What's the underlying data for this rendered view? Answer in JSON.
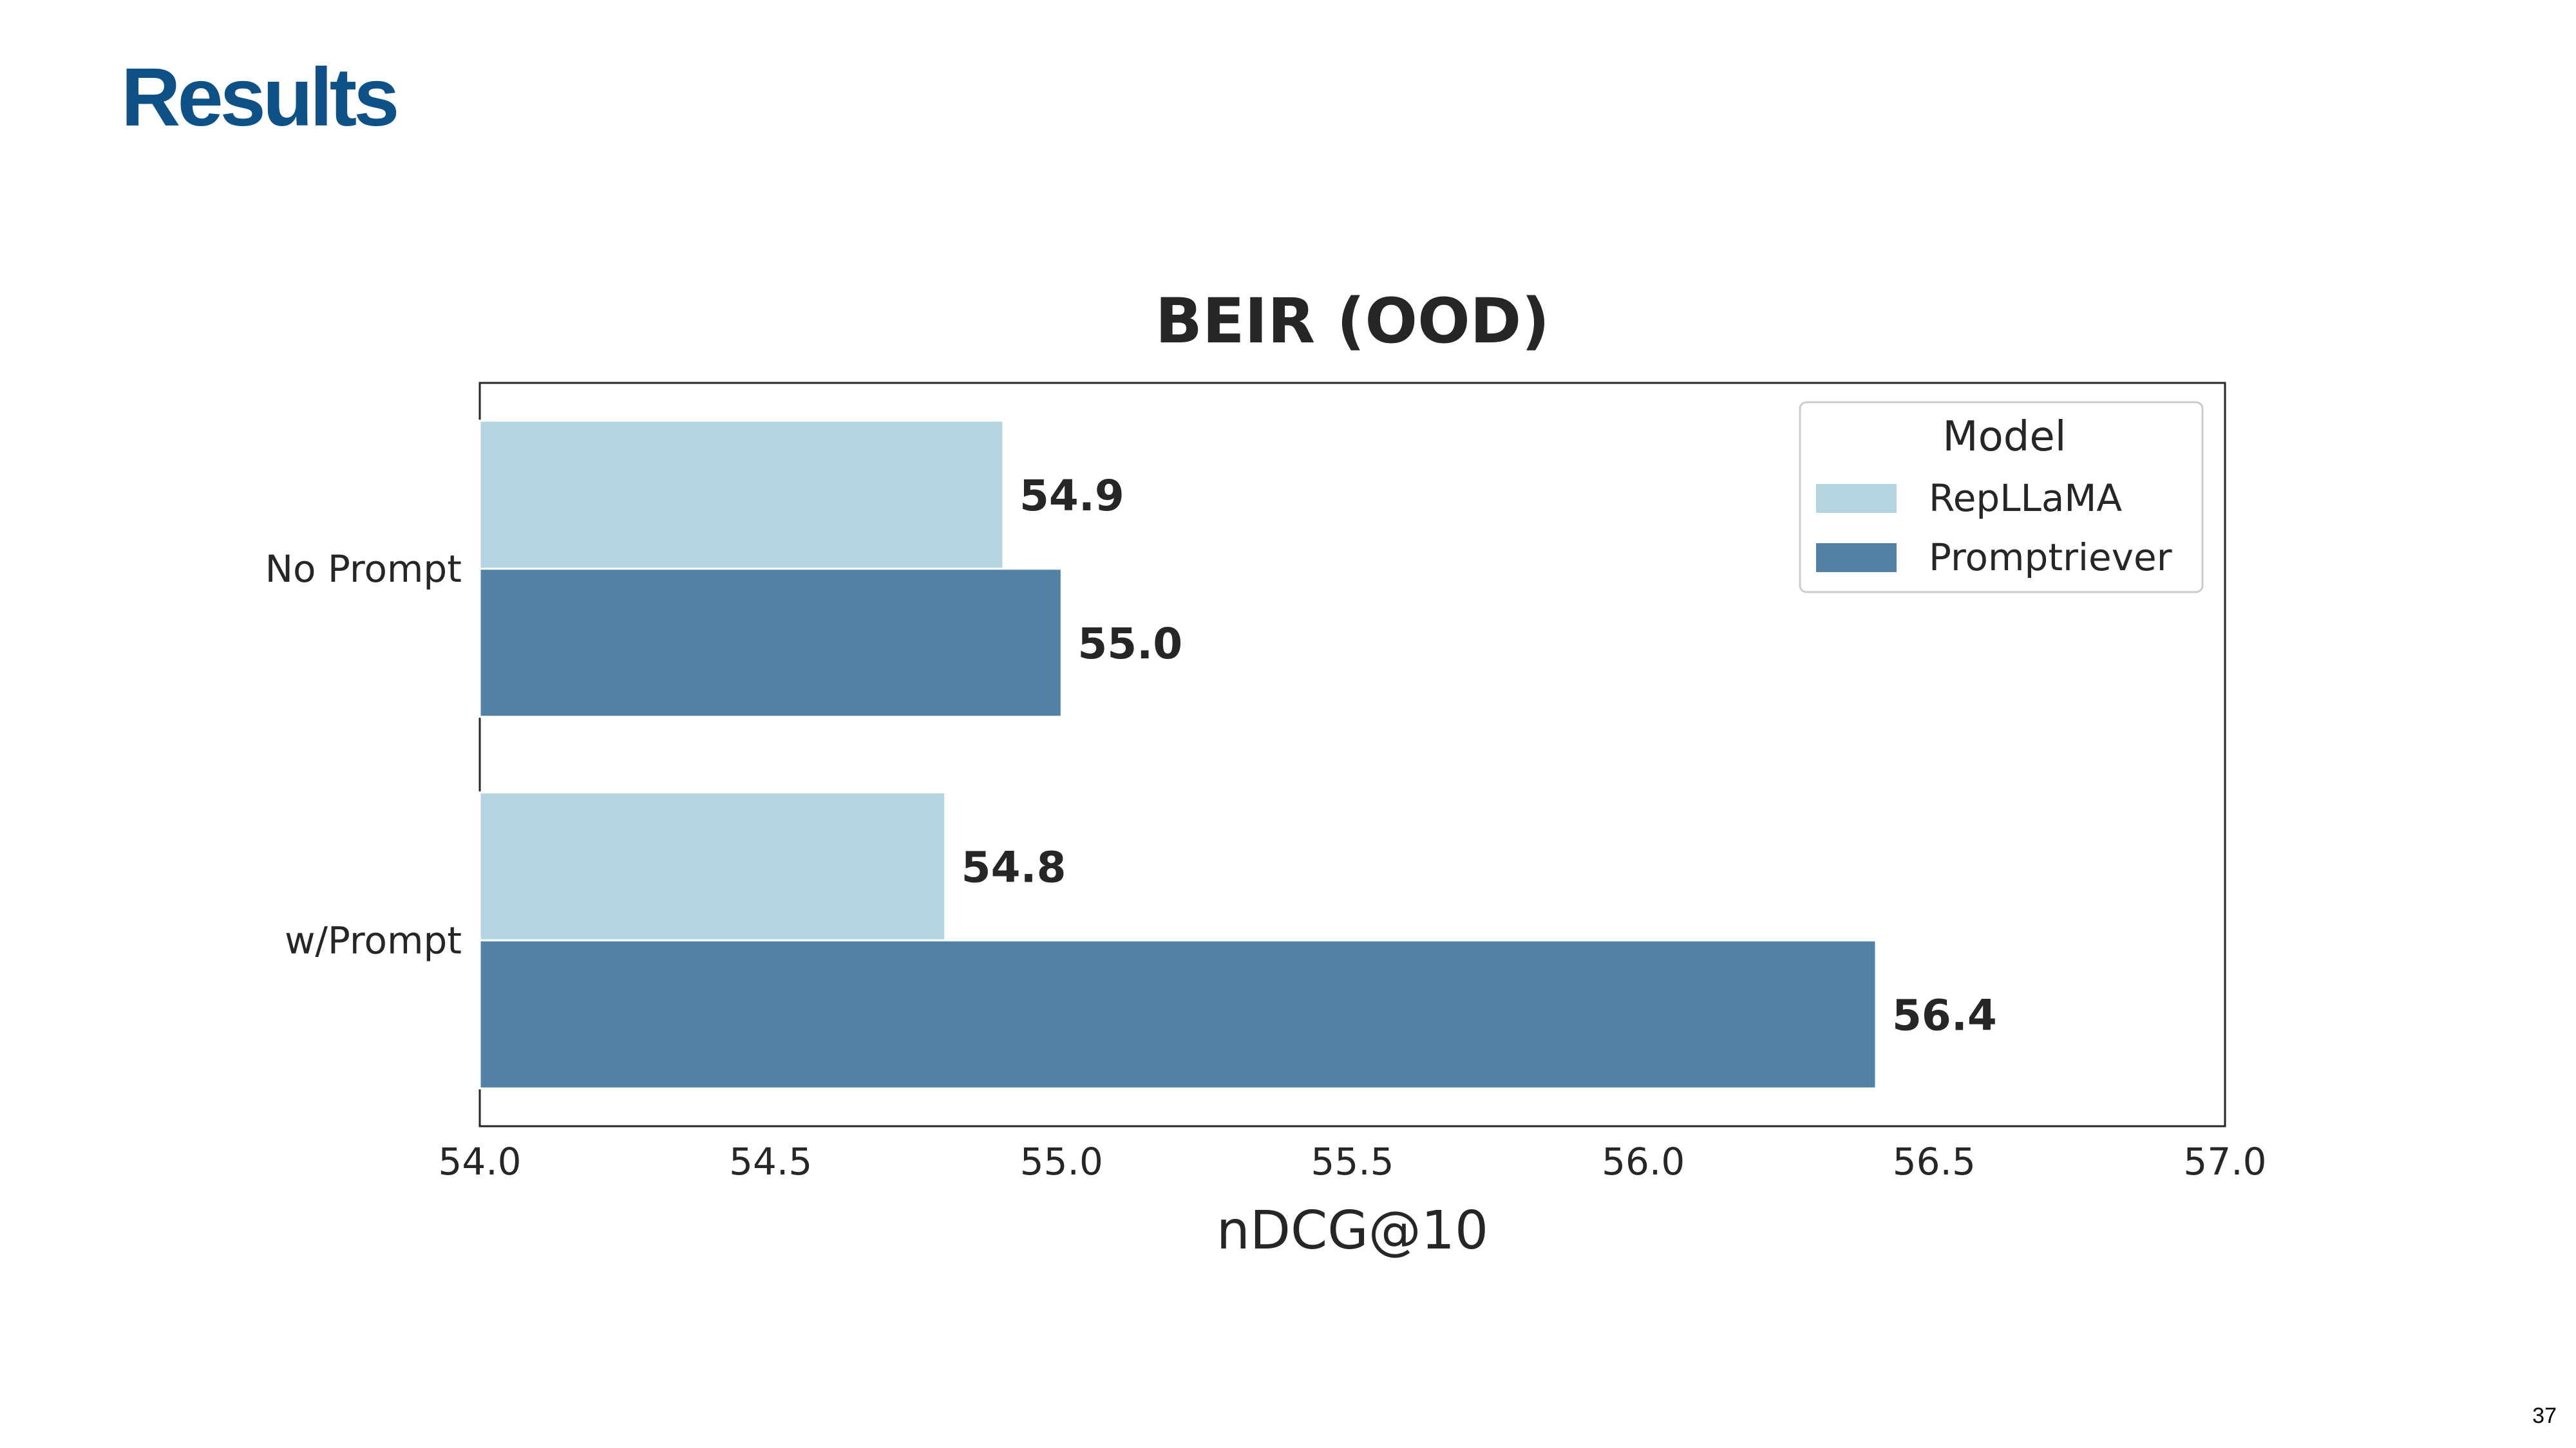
{
  "slide": {
    "title": "Results",
    "page_number": "37"
  },
  "chart_data": {
    "type": "bar",
    "orientation": "horizontal",
    "title": "BEIR (OOD)",
    "xlabel": "nDCG@10",
    "ylabel": "",
    "categories": [
      "No Prompt",
      "w/Prompt"
    ],
    "series": [
      {
        "name": "RepLLaMA",
        "values": [
          54.9,
          54.8
        ],
        "color": "#b4d5df",
        "labels": [
          "54.9",
          "54.8"
        ]
      },
      {
        "name": "Promptriever",
        "values": [
          55.0,
          56.4
        ],
        "color": "#5482a7",
        "labels": [
          "55.0",
          "56.4"
        ]
      }
    ],
    "xlim": [
      54.0,
      57.0
    ],
    "xticks": [
      "54.0",
      "54.5",
      "55.0",
      "55.5",
      "56.0",
      "56.5",
      "57.0"
    ],
    "legend": {
      "title": "Model",
      "placement": "top-right"
    },
    "grid": false
  }
}
